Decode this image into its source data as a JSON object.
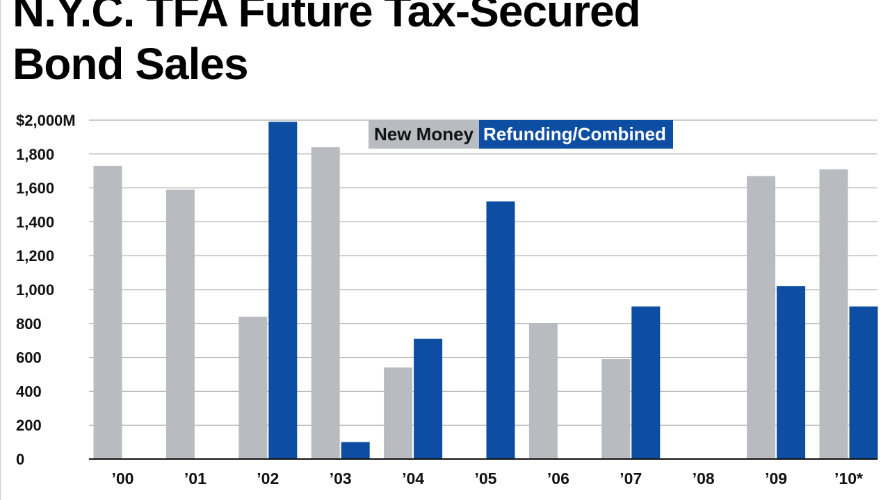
{
  "chart_data": {
    "type": "bar",
    "title": "N.Y.C. TFA Future Tax-Secured\nBond Sales",
    "xlabel": "",
    "ylabel": "",
    "ylim": [
      0,
      2000
    ],
    "y_tick_labels": [
      "0",
      "200",
      "400",
      "600",
      "800",
      "1,000",
      "1,200",
      "1,400",
      "1,600",
      "1,800",
      "$2,000M"
    ],
    "y_ticks": [
      0,
      200,
      400,
      600,
      800,
      1000,
      1200,
      1400,
      1600,
      1800,
      2000
    ],
    "grid": true,
    "legend_position": "top-right",
    "categories": [
      "’00",
      "’01",
      "’02",
      "’03",
      "’04",
      "’05",
      "’06",
      "’07",
      "’08",
      "’09",
      "’10*"
    ],
    "series": [
      {
        "name": "New Money",
        "color": "#b8bcc0",
        "values": [
          1730,
          1590,
          840,
          1840,
          540,
          0,
          800,
          590,
          0,
          1670,
          1710
        ]
      },
      {
        "name": "Refunding/Combined",
        "color": "#0d4ea3",
        "values": [
          0,
          0,
          1990,
          100,
          710,
          1520,
          0,
          900,
          0,
          1020,
          900
        ]
      }
    ]
  }
}
